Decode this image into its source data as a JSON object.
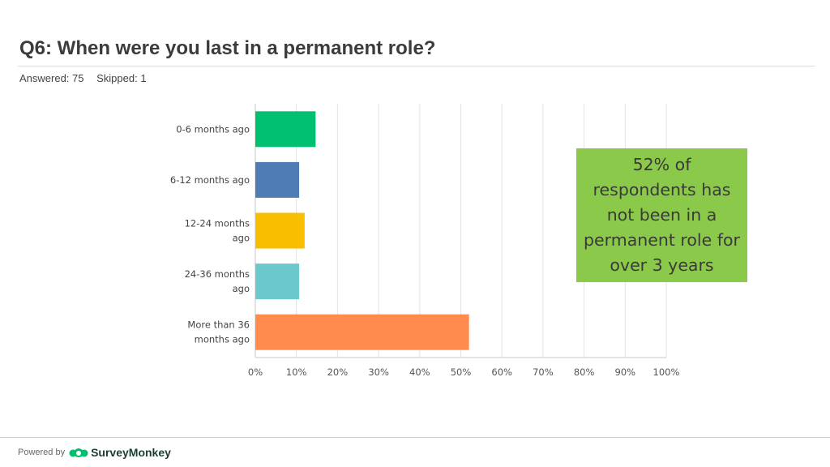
{
  "title": "Q6: When were you last in a permanent role?",
  "stats": {
    "answered": "Answered: 75",
    "skipped": "Skipped: 1"
  },
  "callout": "52% of respondents has not been in a permanent role for over 3 years",
  "footer": {
    "powered_by": "Powered by",
    "brand": "SurveyMonkey"
  },
  "chart_data": {
    "type": "bar",
    "orientation": "horizontal",
    "title": "Q6: When were you last in a permanent role?",
    "xlabel": "",
    "ylabel": "",
    "xlim": [
      0,
      100
    ],
    "grid": true,
    "categories": [
      [
        "0-6 months ago"
      ],
      [
        "6-12 months ago"
      ],
      [
        "12-24 months",
        "ago"
      ],
      [
        "24-36 months",
        "ago"
      ],
      [
        "More than 36",
        "months ago"
      ]
    ],
    "values": [
      14.67,
      10.67,
      12.0,
      10.67,
      52.0
    ],
    "colors": [
      "#00bf6f",
      "#507cb6",
      "#f9be00",
      "#6bc8cd",
      "#ff8b4f"
    ],
    "ticks": [
      "0%",
      "10%",
      "20%",
      "30%",
      "40%",
      "50%",
      "60%",
      "70%",
      "80%",
      "90%",
      "100%"
    ]
  }
}
